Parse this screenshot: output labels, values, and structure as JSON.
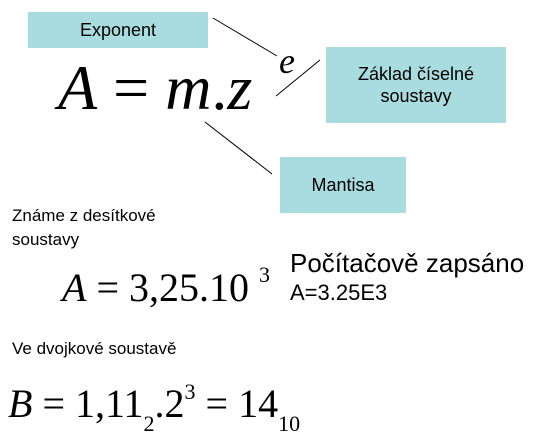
{
  "labels": {
    "exponent": "Exponent",
    "base_line1": "Základ číselné",
    "base_line2": "soustavy",
    "mantissa": "Mantisa"
  },
  "formula_main": {
    "lhs": "A",
    "eq": "=",
    "m": "m",
    "dot": ".",
    "z": "z",
    "e": "e"
  },
  "decimal": {
    "caption_line1": "Známe z desítkové",
    "caption_line2": "soustavy",
    "lhs": "A",
    "eq": "=",
    "value": "3,25.10",
    "exp": "3",
    "computer_label": "Počítačově zapsáno",
    "computer_value": "A=3.25E3"
  },
  "binary": {
    "caption": "Ve dvojkové soustavě",
    "lhs": "B",
    "eq": "=",
    "mant": "1,11",
    "mant_base": "2",
    "dot_two": ".2",
    "exp": "3",
    "eq2": "=",
    "result": "14",
    "result_base": "10"
  }
}
